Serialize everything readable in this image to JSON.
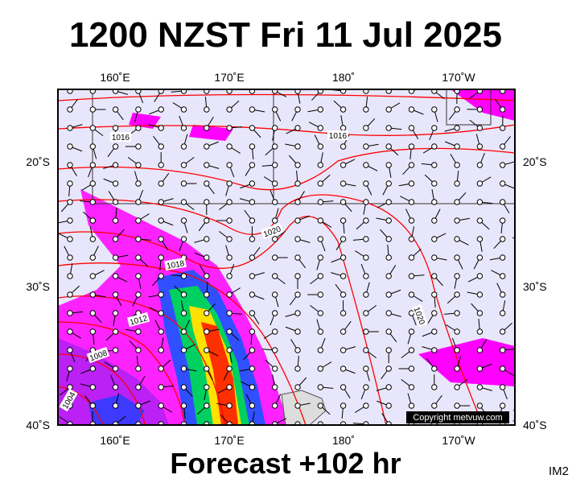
{
  "header": {
    "title": "1200 NZST Fri 11 Jul 2025"
  },
  "map": {
    "top_labels": [
      "160˚E",
      "170˚E",
      "180˚",
      "170˚W"
    ],
    "bottom_labels": [
      "160˚E",
      "170˚E",
      "180˚",
      "170˚W"
    ],
    "left_labels": [
      "20˚S",
      "30˚S",
      "40˚S"
    ],
    "right_labels": [
      "20˚S",
      "30˚S",
      "40˚S"
    ],
    "isobar_labels": [
      "1016",
      "1016",
      "1020",
      "1018",
      "1012",
      "1008",
      "1004",
      "1020"
    ],
    "copyright": "Copyright metvuw.com"
  },
  "footer": {
    "forecast": "Forecast +102 hr",
    "code": "IM2"
  }
}
